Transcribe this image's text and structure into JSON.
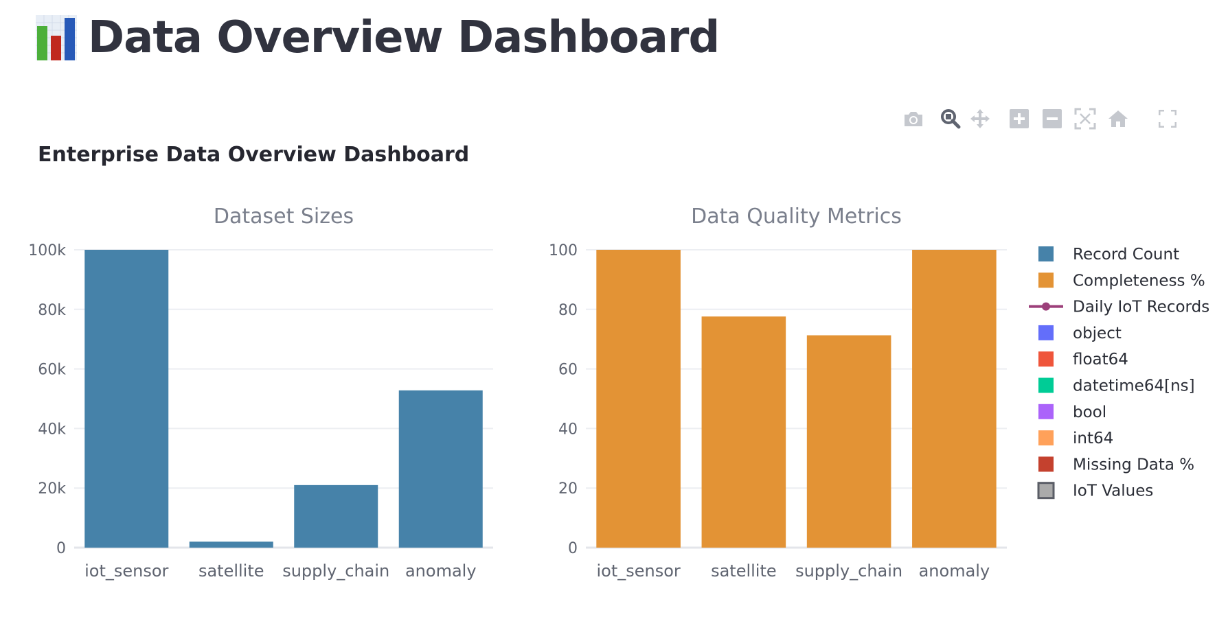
{
  "page": {
    "title": "Data Overview Dashboard",
    "title_icon": "bar-chart-emoji-icon"
  },
  "modebar": {
    "icons": [
      "camera-icon",
      "zoom-icon",
      "pan-icon",
      "zoom-in-icon",
      "zoom-out-icon",
      "autoscale-icon",
      "home-icon",
      "fullscreen-icon"
    ]
  },
  "colors": {
    "record_count": "#4682a9",
    "completeness": "#e39335",
    "daily_iot": "#9c3f7a",
    "object": "#636efa",
    "float64": "#ef553b",
    "datetime": "#00cc96",
    "bool": "#ab63fa",
    "int64": "#ffa15a",
    "missing": "#c4412e",
    "iot_values": "#aaaaaa"
  },
  "chart_data": {
    "title": "Enterprise Data Overview Dashboard",
    "subplots": [
      {
        "title": "Dataset Sizes",
        "type": "bar",
        "categories": [
          "iot_sensor",
          "satellite",
          "supply_chain",
          "anomaly"
        ],
        "series": [
          {
            "name": "Record Count",
            "values": [
              100000,
              2000,
              21000,
              52800
            ]
          }
        ],
        "ylim": [
          0,
          100000
        ],
        "yticks": [
          0,
          20000,
          40000,
          60000,
          80000,
          100000
        ],
        "ytick_labels": [
          "0",
          "20k",
          "40k",
          "60k",
          "80k",
          "100k"
        ],
        "grid": true
      },
      {
        "title": "Data Quality Metrics",
        "type": "bar",
        "categories": [
          "iot_sensor",
          "satellite",
          "supply_chain",
          "anomaly"
        ],
        "series": [
          {
            "name": "Completeness %",
            "values": [
              100,
              77.6,
              71.3,
              100
            ]
          }
        ],
        "ylim": [
          0,
          100
        ],
        "yticks": [
          0,
          20,
          40,
          60,
          80,
          100
        ],
        "ytick_labels": [
          "0",
          "20",
          "40",
          "60",
          "80",
          "100"
        ],
        "grid": true
      }
    ],
    "legend_placement": "right",
    "legend": [
      {
        "label": "Record Count",
        "symbol": "square",
        "color": "#4682a9"
      },
      {
        "label": "Completeness %",
        "symbol": "square",
        "color": "#e39335"
      },
      {
        "label": "Daily IoT Records",
        "symbol": "line-marker",
        "color": "#9c3f7a"
      },
      {
        "label": "object",
        "symbol": "square",
        "color": "#636efa"
      },
      {
        "label": "float64",
        "symbol": "square",
        "color": "#ef553b"
      },
      {
        "label": "datetime64[ns]",
        "symbol": "square",
        "color": "#00cc96"
      },
      {
        "label": "bool",
        "symbol": "square",
        "color": "#ab63fa"
      },
      {
        "label": "int64",
        "symbol": "square",
        "color": "#ffa15a"
      },
      {
        "label": "Missing Data %",
        "symbol": "square",
        "color": "#c4412e"
      },
      {
        "label": "IoT Values",
        "symbol": "outlined-square",
        "color": "#aaaaaa"
      }
    ]
  }
}
